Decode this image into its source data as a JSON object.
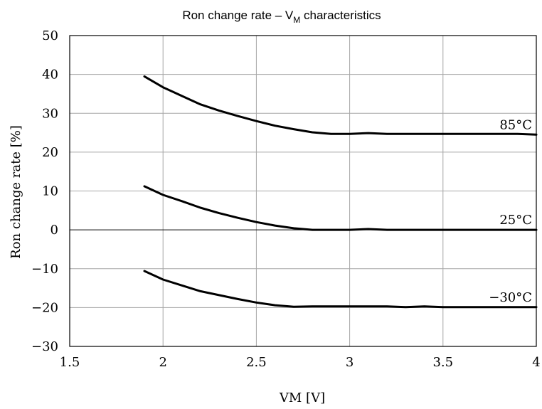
{
  "chart_data": {
    "type": "line",
    "title": {
      "prefix": "Ron change rate – V",
      "subscript": "M",
      "suffix": " characteristics"
    },
    "xlabel": "VM [V]",
    "ylabel": "Ron change rate [%]",
    "xlim": [
      1.5,
      4
    ],
    "ylim": [
      -30,
      50
    ],
    "x_ticks": [
      1.5,
      2,
      2.5,
      3,
      3.5,
      4
    ],
    "x_tick_labels": [
      "1.5",
      "2",
      "2.5",
      "3",
      "3.5",
      "4"
    ],
    "y_ticks": [
      50,
      40,
      30,
      20,
      10,
      0,
      -10,
      -20,
      -30
    ],
    "y_tick_labels": [
      "50",
      "40",
      "30",
      "20",
      "10",
      "0",
      "−10",
      "−20",
      "−30"
    ],
    "grid": true,
    "series": [
      {
        "name": "85°C",
        "x": [
          1.9,
          2.0,
          2.1,
          2.2,
          2.3,
          2.4,
          2.5,
          2.6,
          2.7,
          2.8,
          2.9,
          3.0,
          3.1,
          3.2,
          3.3,
          3.4,
          3.5,
          3.6,
          3.7,
          3.8,
          3.9,
          4.0
        ],
        "values": [
          39.5,
          36.7,
          34.5,
          32.3,
          30.7,
          29.3,
          28.0,
          26.8,
          25.9,
          25.1,
          24.7,
          24.7,
          24.9,
          24.7,
          24.7,
          24.7,
          24.7,
          24.7,
          24.7,
          24.7,
          24.7,
          24.5
        ]
      },
      {
        "name": "25°C",
        "x": [
          1.9,
          2.0,
          2.1,
          2.2,
          2.3,
          2.4,
          2.5,
          2.6,
          2.7,
          2.8,
          2.9,
          3.0,
          3.1,
          3.2,
          3.3,
          3.4,
          3.5,
          3.6,
          3.7,
          3.8,
          3.9,
          4.0
        ],
        "values": [
          11.2,
          9.0,
          7.4,
          5.7,
          4.3,
          3.1,
          2.0,
          1.1,
          0.4,
          0.0,
          0.0,
          0.0,
          0.2,
          0.0,
          0.0,
          0.0,
          0.0,
          0.0,
          0.0,
          0.0,
          0.0,
          0.0
        ]
      },
      {
        "name": "−30°C",
        "x": [
          1.9,
          2.0,
          2.1,
          2.2,
          2.3,
          2.4,
          2.5,
          2.6,
          2.7,
          2.8,
          2.9,
          3.0,
          3.1,
          3.2,
          3.3,
          3.4,
          3.5,
          3.6,
          3.7,
          3.8,
          3.9,
          4.0
        ],
        "values": [
          -10.6,
          -12.8,
          -14.3,
          -15.8,
          -16.8,
          -17.8,
          -18.7,
          -19.4,
          -19.8,
          -19.7,
          -19.7,
          -19.7,
          -19.7,
          -19.7,
          -19.9,
          -19.7,
          -19.9,
          -19.9,
          -19.9,
          -19.9,
          -19.9,
          -19.9
        ]
      }
    ]
  }
}
